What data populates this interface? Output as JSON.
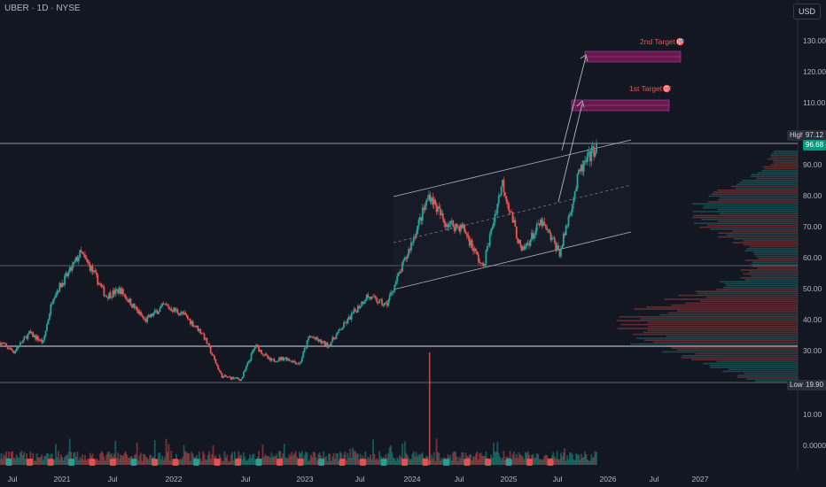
{
  "header": {
    "symbol": "UBER · 1D · NYSE",
    "currency": "USD"
  },
  "price_scale": {
    "high_label": "High",
    "high_value": "97.12",
    "last_value": "96.68",
    "low_label": "Low",
    "low_value": "19.90"
  },
  "colors": {
    "up": "#26a69a",
    "down": "#ef5350",
    "background": "#131722",
    "target_fill": "#8e1b5a",
    "target_text": "#ef5350"
  },
  "chart_data": {
    "type": "candlestick",
    "yticks": [
      "130.00",
      "120.00",
      "110.00",
      "100.00",
      "90.00",
      "80.00",
      "70.00",
      "60.00",
      "50.00",
      "40.00",
      "30.00",
      "20.00",
      "10.00",
      "0.0000"
    ],
    "xticks": [
      "Jul",
      "2021",
      "Jul",
      "2022",
      "Jul",
      "2023",
      "Jul",
      "2024",
      "Jul",
      "2025",
      "Jul",
      "2026",
      "Jul",
      "2027"
    ],
    "price_path": [
      [
        "2020-06-01",
        33
      ],
      [
        "2020-07-15",
        30
      ],
      [
        "2020-09-01",
        36
      ],
      [
        "2020-10-15",
        33
      ],
      [
        "2020-11-15",
        48
      ],
      [
        "2021-01-01",
        55
      ],
      [
        "2021-02-10",
        62
      ],
      [
        "2021-03-15",
        57
      ],
      [
        "2021-05-01",
        48
      ],
      [
        "2021-06-15",
        50
      ],
      [
        "2021-09-01",
        40
      ],
      [
        "2021-11-01",
        45
      ],
      [
        "2022-01-01",
        42
      ],
      [
        "2022-03-01",
        36
      ],
      [
        "2022-05-01",
        22
      ],
      [
        "2022-07-01",
        21
      ],
      [
        "2022-08-15",
        32
      ],
      [
        "2022-10-01",
        27
      ],
      [
        "2022-11-15",
        28
      ],
      [
        "2023-01-01",
        26
      ],
      [
        "2023-02-01",
        35
      ],
      [
        "2023-04-01",
        32
      ],
      [
        "2023-06-01",
        40
      ],
      [
        "2023-08-01",
        48
      ],
      [
        "2023-10-01",
        45
      ],
      [
        "2023-12-01",
        60
      ],
      [
        "2024-02-15",
        81
      ],
      [
        "2024-04-01",
        72
      ],
      [
        "2024-06-01",
        70
      ],
      [
        "2024-08-01",
        57
      ],
      [
        "2024-10-01",
        85
      ],
      [
        "2024-12-01",
        62
      ],
      [
        "2025-02-01",
        72
      ],
      [
        "2025-04-01",
        62
      ],
      [
        "2025-06-01",
        88
      ],
      [
        "2025-07-25",
        96.68
      ]
    ],
    "high": 97.12,
    "last": 96.68,
    "low": 19.9,
    "annotations": [
      "1st Target🎯",
      "2nd Target🎯"
    ],
    "levels": [
      97.12,
      59,
      33,
      20
    ],
    "volume_spike": "2024-02"
  }
}
